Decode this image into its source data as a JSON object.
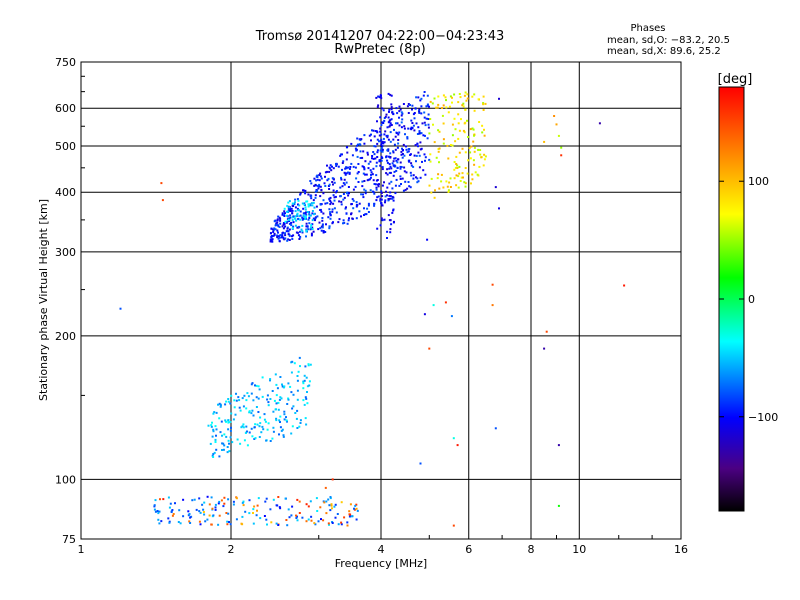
{
  "chart_data": {
    "type": "scatter",
    "title": "Tromsø 20141207 04:22:00−04:23:43",
    "subtitle": "RwPretec (8p)",
    "xlabel": "Frequency [MHz]",
    "ylabel": "Stationary phase Virtual Height [km]",
    "x_scale": "log",
    "y_scale": "log",
    "xlim": [
      1,
      16
    ],
    "ylim": [
      75,
      750
    ],
    "x_ticks": [
      "1",
      "2",
      "4",
      "6",
      "8",
      "10",
      "16"
    ],
    "x_tick_values": [
      1,
      2,
      4,
      6,
      8,
      10,
      16
    ],
    "y_ticks": [
      "750",
      "600",
      "500",
      "400",
      "300",
      "200",
      "100",
      "75"
    ],
    "y_tick_values": [
      750,
      600,
      500,
      400,
      300,
      200,
      100,
      75
    ],
    "grid": true,
    "phase_box": {
      "title": "Phases",
      "line1": "mean, sd,O: −83.2, 20.5",
      "line2": "mean, sd,X:  89.6, 25.2"
    },
    "colorbar": {
      "label": "[deg]",
      "range": [
        -180,
        180
      ],
      "ticks": [
        "100",
        "0",
        "−100"
      ],
      "tick_values": [
        100,
        0,
        -100
      ]
    },
    "clusters": [
      {
        "kind": "F-layer O-mode trace",
        "freq_range": [
          2.4,
          5.0
        ],
        "height_range": [
          310,
          650
        ],
        "phase_mean": -95,
        "count": 750
      },
      {
        "kind": "F-layer X-mode trace",
        "freq_range": [
          5.0,
          6.5
        ],
        "height_range": [
          360,
          650
        ],
        "phase_mean": 80,
        "count": 160
      },
      {
        "kind": "spread F echoes",
        "freq_range": [
          1.8,
          2.9
        ],
        "height_range": [
          105,
          185
        ],
        "phase_mean": -55,
        "count": 230
      },
      {
        "kind": "E-layer echoes",
        "freq_range": [
          1.4,
          3.6
        ],
        "height_range": [
          80,
          95
        ],
        "phase_mean": -40,
        "count": 190
      }
    ],
    "points": [
      {
        "x": 1.2,
        "y": 228,
        "phase": -80
      },
      {
        "x": 1.45,
        "y": 418,
        "phase": 150
      },
      {
        "x": 1.46,
        "y": 385,
        "phase": 150
      },
      {
        "x": 4.95,
        "y": 318,
        "phase": -100
      },
      {
        "x": 4.9,
        "y": 222,
        "phase": -110
      },
      {
        "x": 4.8,
        "y": 108,
        "phase": -80
      },
      {
        "x": 5.1,
        "y": 232,
        "phase": -30
      },
      {
        "x": 5.4,
        "y": 235,
        "phase": 160
      },
      {
        "x": 5.55,
        "y": 220,
        "phase": -70
      },
      {
        "x": 5.6,
        "y": 80,
        "phase": 150
      },
      {
        "x": 5.7,
        "y": 118,
        "phase": 170
      },
      {
        "x": 5.6,
        "y": 122,
        "phase": -30
      },
      {
        "x": 5.0,
        "y": 188,
        "phase": 150
      },
      {
        "x": 6.8,
        "y": 410,
        "phase": -115
      },
      {
        "x": 6.9,
        "y": 370,
        "phase": -110
      },
      {
        "x": 6.7,
        "y": 256,
        "phase": 150
      },
      {
        "x": 6.7,
        "y": 232,
        "phase": 130
      },
      {
        "x": 6.8,
        "y": 128,
        "phase": -80
      },
      {
        "x": 6.9,
        "y": 628,
        "phase": -115
      },
      {
        "x": 8.6,
        "y": 204,
        "phase": 150
      },
      {
        "x": 8.5,
        "y": 188,
        "phase": -130
      },
      {
        "x": 9.1,
        "y": 118,
        "phase": -130
      },
      {
        "x": 9.1,
        "y": 88,
        "phase": 20
      },
      {
        "x": 12.3,
        "y": 255,
        "phase": 170
      },
      {
        "x": 11.0,
        "y": 558,
        "phase": -130
      },
      {
        "x": 8.5,
        "y": 510,
        "phase": 100
      },
      {
        "x": 9.0,
        "y": 555,
        "phase": 110
      },
      {
        "x": 9.1,
        "y": 525,
        "phase": 60
      },
      {
        "x": 9.2,
        "y": 478,
        "phase": 160
      },
      {
        "x": 9.2,
        "y": 496,
        "phase": 50
      },
      {
        "x": 8.9,
        "y": 578,
        "phase": 120
      },
      {
        "x": 3.55,
        "y": 88,
        "phase": -60
      },
      {
        "x": 3.2,
        "y": 100,
        "phase": 160
      },
      {
        "x": 3.1,
        "y": 96,
        "phase": 140
      }
    ]
  }
}
